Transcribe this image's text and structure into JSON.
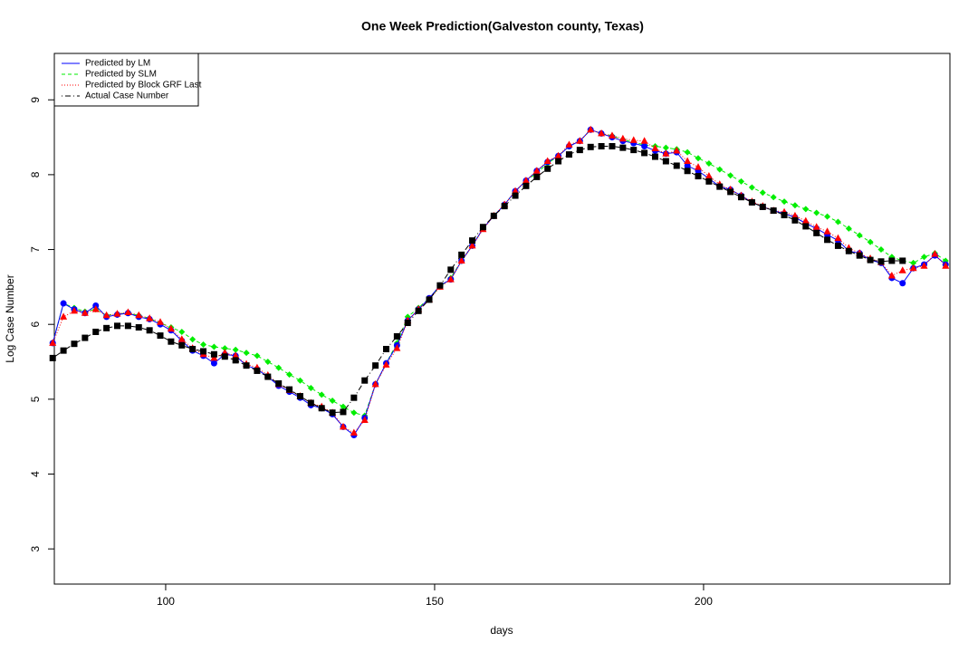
{
  "chart_data": {
    "type": "line",
    "title": "One Week Prediction(Galveston county, Texas)",
    "x_label": "days",
    "y_label": "Log Case Number",
    "xlim": [
      79.3,
      245.8
    ],
    "ylim": [
      2.53,
      9.62
    ],
    "xticks": [
      100,
      150,
      200
    ],
    "yticks": [
      3,
      4,
      5,
      6,
      7,
      8,
      9
    ],
    "legend": "top-left",
    "x": [
      79,
      81,
      83,
      85,
      87,
      89,
      91,
      93,
      95,
      97,
      99,
      101,
      103,
      105,
      107,
      109,
      111,
      113,
      115,
      117,
      119,
      121,
      123,
      125,
      127,
      129,
      131,
      133,
      135,
      137,
      139,
      141,
      143,
      145,
      147,
      149,
      151,
      153,
      155,
      157,
      159,
      161,
      163,
      165,
      167,
      169,
      171,
      173,
      175,
      177,
      179,
      181,
      183,
      185,
      187,
      189,
      191,
      193,
      195,
      197,
      199,
      201,
      203,
      205,
      207,
      209,
      211,
      213,
      215,
      217,
      219,
      221,
      223,
      225,
      227,
      229,
      231,
      233,
      235,
      237,
      239,
      241,
      243,
      245
    ],
    "series": [
      {
        "name": "Predicted by LM",
        "color": "#0000ff",
        "dash": "solid",
        "marker": "circle",
        "values": [
          5.75,
          6.28,
          6.2,
          6.15,
          6.25,
          6.1,
          6.13,
          6.15,
          6.1,
          6.07,
          6.0,
          5.92,
          5.78,
          5.65,
          5.58,
          5.48,
          5.6,
          5.58,
          5.45,
          5.4,
          5.3,
          5.18,
          5.1,
          5.02,
          4.92,
          4.88,
          4.8,
          4.63,
          4.52,
          4.75,
          5.2,
          5.48,
          5.72,
          6.05,
          6.2,
          6.35,
          6.52,
          6.6,
          6.85,
          7.05,
          7.28,
          7.45,
          7.6,
          7.78,
          7.92,
          8.05,
          8.17,
          8.25,
          8.38,
          8.45,
          8.6,
          8.55,
          8.5,
          8.45,
          8.42,
          8.38,
          8.32,
          8.28,
          8.3,
          8.12,
          8.05,
          7.95,
          7.84,
          7.8,
          7.72,
          7.63,
          7.57,
          7.52,
          7.48,
          7.43,
          7.35,
          7.28,
          7.2,
          7.12,
          6.98,
          6.95,
          6.86,
          6.82,
          6.62,
          6.55,
          6.75,
          6.8,
          6.92,
          6.8
        ]
      },
      {
        "name": "Predicted by SLM",
        "color": "#00ee00",
        "dash": "dashed",
        "marker": "diamond",
        "values": [
          5.75,
          6.28,
          6.22,
          6.17,
          6.2,
          6.12,
          6.14,
          6.15,
          6.12,
          6.08,
          6.02,
          5.96,
          5.9,
          5.8,
          5.73,
          5.7,
          5.68,
          5.66,
          5.62,
          5.58,
          5.5,
          5.42,
          5.33,
          5.25,
          5.15,
          5.06,
          4.98,
          4.9,
          4.82,
          4.78,
          5.2,
          5.48,
          5.75,
          6.1,
          6.22,
          6.35,
          6.5,
          6.62,
          6.85,
          7.05,
          7.28,
          7.45,
          7.6,
          7.78,
          7.92,
          8.02,
          8.15,
          8.25,
          8.38,
          8.45,
          8.6,
          8.55,
          8.52,
          8.47,
          8.43,
          8.4,
          8.38,
          8.36,
          8.34,
          8.3,
          8.22,
          8.15,
          8.07,
          7.99,
          7.91,
          7.83,
          7.76,
          7.7,
          7.64,
          7.59,
          7.54,
          7.49,
          7.44,
          7.37,
          7.28,
          7.19,
          7.1,
          7.0,
          6.9,
          6.85,
          6.82,
          6.9,
          6.95,
          6.85
        ]
      },
      {
        "name": "Predicted by Block GRF Last",
        "color": "#ff0000",
        "dash": "dotted",
        "marker": "triangle",
        "values": [
          5.75,
          6.1,
          6.18,
          6.15,
          6.2,
          6.12,
          6.14,
          6.16,
          6.12,
          6.08,
          6.03,
          5.94,
          5.8,
          5.68,
          5.6,
          5.55,
          5.62,
          5.58,
          5.47,
          5.42,
          5.32,
          5.2,
          5.12,
          5.04,
          4.95,
          4.9,
          4.82,
          4.63,
          4.55,
          4.72,
          5.2,
          5.46,
          5.68,
          6.05,
          6.2,
          6.33,
          6.5,
          6.6,
          6.85,
          7.05,
          7.27,
          7.45,
          7.6,
          7.78,
          7.92,
          8.05,
          8.18,
          8.25,
          8.4,
          8.45,
          8.6,
          8.55,
          8.52,
          8.48,
          8.46,
          8.45,
          8.35,
          8.28,
          8.32,
          8.18,
          8.1,
          7.98,
          7.87,
          7.8,
          7.72,
          7.64,
          7.58,
          7.52,
          7.5,
          7.45,
          7.38,
          7.3,
          7.24,
          7.15,
          7.02,
          6.95,
          6.88,
          6.83,
          6.65,
          6.72,
          6.75,
          6.78,
          6.94,
          6.78
        ]
      },
      {
        "name": "Actual Case Number",
        "color": "#000000",
        "dash": "dotdash",
        "marker": "square",
        "values": [
          5.55,
          5.65,
          5.74,
          5.82,
          5.9,
          5.95,
          5.98,
          5.98,
          5.96,
          5.92,
          5.85,
          5.77,
          5.72,
          5.67,
          5.64,
          5.6,
          5.57,
          5.52,
          5.45,
          5.38,
          5.3,
          5.21,
          5.13,
          5.04,
          4.95,
          4.88,
          4.82,
          4.83,
          5.02,
          5.25,
          5.45,
          5.67,
          5.84,
          6.02,
          6.18,
          6.33,
          6.52,
          6.73,
          6.93,
          7.12,
          7.3,
          7.45,
          7.58,
          7.72,
          7.85,
          7.97,
          8.08,
          8.18,
          8.27,
          8.33,
          8.37,
          8.38,
          8.38,
          8.36,
          8.33,
          8.29,
          8.24,
          8.18,
          8.12,
          8.05,
          7.98,
          7.91,
          7.84,
          7.77,
          7.7,
          7.63,
          7.57,
          7.52,
          7.46,
          7.39,
          7.31,
          7.22,
          7.13,
          7.05,
          6.98,
          6.92,
          6.86,
          6.84,
          6.85,
          6.85,
          null,
          null,
          null,
          null
        ]
      }
    ]
  }
}
